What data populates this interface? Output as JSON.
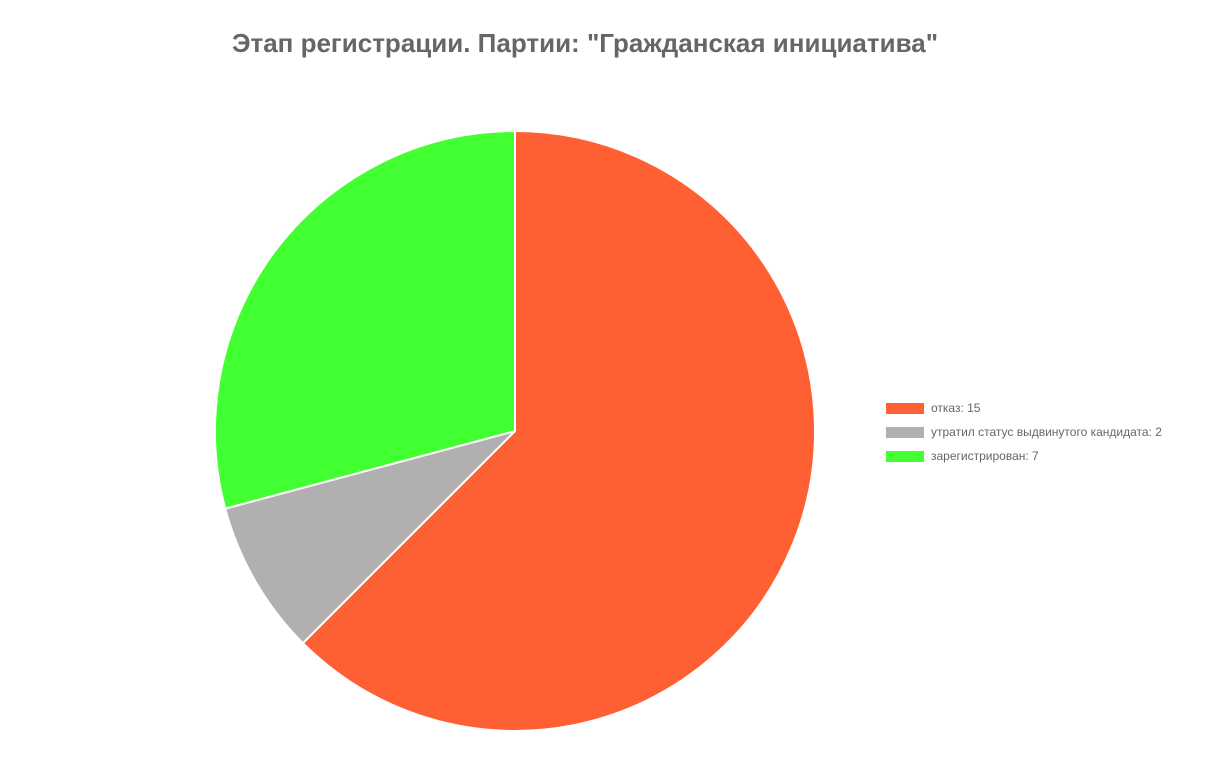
{
  "chart_data": {
    "type": "pie",
    "title": "Этап регистрации. Партии: \"Гражданская инициатива\"",
    "legend_position": "right",
    "slices": [
      {
        "label": "отказ",
        "value": 15,
        "legend_text": "отказ: 15",
        "color": "#FF6033"
      },
      {
        "label": "утратил статус выдвинутого кандидата",
        "value": 2,
        "legend_text": "утратил статус выдвинутого кандидата: 2",
        "color": "#B0B0B0"
      },
      {
        "label": "зарегистрирован",
        "value": 7,
        "legend_text": "зарегистрирован: 7",
        "color": "#41FF30"
      }
    ]
  }
}
